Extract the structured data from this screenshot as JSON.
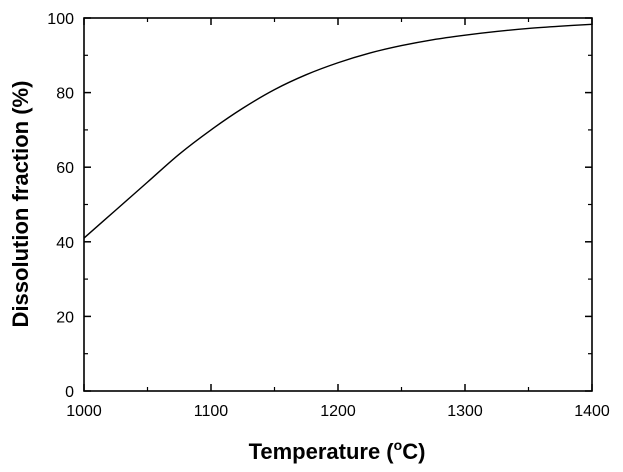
{
  "chart_data": {
    "type": "line",
    "xlabel": "Temperature (",
    "xlabel_unit_sup": "o",
    "xlabel_unit_tail": "C)",
    "ylabel": "Dissolution fraction (%)",
    "xlim": [
      1000,
      1400
    ],
    "ylim": [
      0,
      100
    ],
    "x_ticks": [
      1000,
      1100,
      1200,
      1300,
      1400
    ],
    "y_ticks": [
      0,
      20,
      40,
      60,
      80,
      100
    ],
    "x_tick_labels": [
      "1000",
      "1100",
      "1200",
      "1300",
      "1400"
    ],
    "y_tick_labels": [
      "0",
      "20",
      "40",
      "60",
      "80",
      "100"
    ],
    "grid": false,
    "legend": "none",
    "series": [
      {
        "color": "#000000",
        "x": [
          1000,
          1025,
          1050,
          1075,
          1100,
          1125,
          1150,
          1175,
          1200,
          1225,
          1250,
          1275,
          1300,
          1325,
          1350,
          1375,
          1400
        ],
        "y": [
          41.0,
          48.5,
          56.0,
          63.5,
          70.0,
          75.8,
          80.8,
          84.8,
          88.0,
          90.6,
          92.6,
          94.2,
          95.4,
          96.4,
          97.2,
          97.8,
          98.3
        ]
      }
    ]
  }
}
